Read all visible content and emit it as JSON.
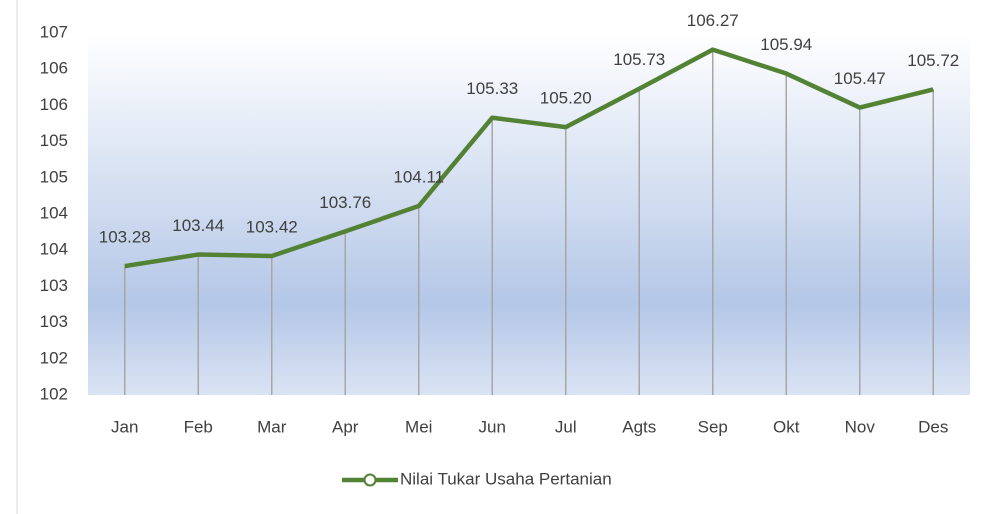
{
  "chart_data": {
    "type": "line",
    "categories": [
      "Jan",
      "Feb",
      "Mar",
      "Apr",
      "Mei",
      "Jun",
      "Jul",
      "Agts",
      "Sep",
      "Okt",
      "Nov",
      "Des"
    ],
    "series": [
      {
        "name": "Nilai Tukar Usaha Pertanian",
        "color": "#548235",
        "values": [
          103.28,
          103.44,
          103.42,
          103.76,
          104.11,
          105.33,
          105.2,
          105.73,
          106.27,
          105.94,
          105.47,
          105.72
        ],
        "value_labels": [
          "103.28",
          "103.44",
          "103.42",
          "103.76",
          "104.11",
          "105.33",
          "105.20",
          "105.73",
          "106.27",
          "105.94",
          "105.47",
          "105.72"
        ]
      }
    ],
    "ylim": [
      101.5,
      106.5
    ],
    "yticks": [
      {
        "value": 101.5,
        "label": "102"
      },
      102,
      {
        "value": 102.5,
        "label": "103"
      },
      103,
      {
        "value": 103.5,
        "label": "104"
      },
      104,
      {
        "value": 104.5,
        "label": "105"
      },
      105,
      {
        "value": 105.5,
        "label": "106"
      },
      106,
      {
        "value": 106.5,
        "label": "107"
      }
    ],
    "drop_lines": true,
    "legend": "bottom"
  }
}
